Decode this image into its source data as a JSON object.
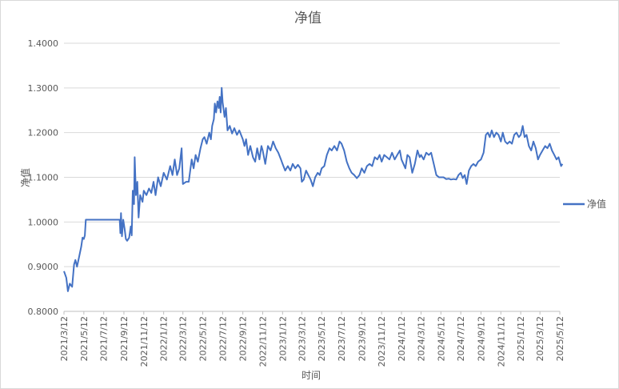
{
  "chart_data": {
    "type": "line",
    "title": "净值",
    "xlabel": "时间",
    "ylabel": "净值",
    "ylim": [
      0.8,
      1.4
    ],
    "y_ticks": [
      "0.8000",
      "0.9000",
      "1.0000",
      "1.1000",
      "1.2000",
      "1.3000",
      "1.4000"
    ],
    "x_ticks": [
      "2021/3/12",
      "2021/5/12",
      "2021/7/12",
      "2021/9/12",
      "2021/11/12",
      "2022/1/12",
      "2022/3/12",
      "2022/5/12",
      "2022/7/12",
      "2022/9/12",
      "2022/11/12",
      "2023/1/12",
      "2023/3/12",
      "2023/5/12",
      "2023/7/12",
      "2023/9/12",
      "2023/11/12",
      "2024/1/12",
      "2024/3/12",
      "2024/5/12",
      "2024/7/12",
      "2024/9/12",
      "2024/11/12",
      "2025/1/12",
      "2025/3/12",
      "2025/5/12"
    ],
    "grid": true,
    "legend": "right",
    "color": "#4472c4",
    "series": [
      {
        "name": "净值",
        "points": [
          [
            "2021/3/12",
            0.89
          ],
          [
            "2021/3/19",
            0.875
          ],
          [
            "2021/3/24",
            0.845
          ],
          [
            "2021/3/30",
            0.862
          ],
          [
            "2021/4/6",
            0.855
          ],
          [
            "2021/4/12",
            0.905
          ],
          [
            "2021/4/16",
            0.915
          ],
          [
            "2021/4/21",
            0.9
          ],
          [
            "2021/4/27",
            0.92
          ],
          [
            "2021/5/4",
            0.945
          ],
          [
            "2021/5/8",
            0.965
          ],
          [
            "2021/5/12",
            0.962
          ],
          [
            "2021/5/15",
            0.97
          ],
          [
            "2021/5/18",
            1.005
          ],
          [
            "2021/6/15",
            1.005
          ],
          [
            "2021/7/15",
            1.005
          ],
          [
            "2021/8/15",
            1.005
          ],
          [
            "2021/8/30",
            1.005
          ],
          [
            "2021/9/1",
            0.975
          ],
          [
            "2021/9/3",
            1.02
          ],
          [
            "2021/9/6",
            0.968
          ],
          [
            "2021/9/10",
            1.005
          ],
          [
            "2021/9/14",
            0.985
          ],
          [
            "2021/9/18",
            0.962
          ],
          [
            "2021/9/22",
            0.958
          ],
          [
            "2021/9/28",
            0.965
          ],
          [
            "2021/10/3",
            0.99
          ],
          [
            "2021/10/6",
            0.97
          ],
          [
            "2021/10/9",
            1.07
          ],
          [
            "2021/10/13",
            1.04
          ],
          [
            "2021/10/15",
            1.145
          ],
          [
            "2021/10/19",
            1.06
          ],
          [
            "2021/10/23",
            1.09
          ],
          [
            "2021/10/27",
            1.01
          ],
          [
            "2021/11/1",
            1.06
          ],
          [
            "2021/11/8",
            1.045
          ],
          [
            "2021/11/12",
            1.07
          ],
          [
            "2021/11/20",
            1.06
          ],
          [
            "2021/11/28",
            1.075
          ],
          [
            "2021/12/5",
            1.065
          ],
          [
            "2021/12/12",
            1.09
          ],
          [
            "2021/12/18",
            1.06
          ],
          [
            "2021/12/26",
            1.1
          ],
          [
            "2022/1/3",
            1.08
          ],
          [
            "2022/1/12",
            1.11
          ],
          [
            "2022/1/22",
            1.095
          ],
          [
            "2022/2/1",
            1.125
          ],
          [
            "2022/2/8",
            1.105
          ],
          [
            "2022/2/15",
            1.14
          ],
          [
            "2022/2/22",
            1.105
          ],
          [
            "2022/3/1",
            1.12
          ],
          [
            "2022/3/8",
            1.165
          ],
          [
            "2022/3/12",
            1.085
          ],
          [
            "2022/3/22",
            1.09
          ],
          [
            "2022/3/30",
            1.09
          ],
          [
            "2022/4/8",
            1.14
          ],
          [
            "2022/4/14",
            1.12
          ],
          [
            "2022/4/20",
            1.15
          ],
          [
            "2022/4/27",
            1.135
          ],
          [
            "2022/5/5",
            1.165
          ],
          [
            "2022/5/12",
            1.185
          ],
          [
            "2022/5/17",
            1.19
          ],
          [
            "2022/5/24",
            1.175
          ],
          [
            "2022/6/1",
            1.2
          ],
          [
            "2022/6/6",
            1.185
          ],
          [
            "2022/6/10",
            1.215
          ],
          [
            "2022/6/15",
            1.23
          ],
          [
            "2022/6/18",
            1.265
          ],
          [
            "2022/6/22",
            1.245
          ],
          [
            "2022/6/26",
            1.27
          ],
          [
            "2022/6/30",
            1.255
          ],
          [
            "2022/7/3",
            1.28
          ],
          [
            "2022/7/6",
            1.245
          ],
          [
            "2022/7/9",
            1.3
          ],
          [
            "2022/7/12",
            1.268
          ],
          [
            "2022/7/18",
            1.235
          ],
          [
            "2022/7/22",
            1.255
          ],
          [
            "2022/7/27",
            1.205
          ],
          [
            "2022/8/3",
            1.215
          ],
          [
            "2022/8/10",
            1.198
          ],
          [
            "2022/8/17",
            1.21
          ],
          [
            "2022/8/25",
            1.195
          ],
          [
            "2022/9/1",
            1.205
          ],
          [
            "2022/9/12",
            1.185
          ],
          [
            "2022/9/17",
            1.17
          ],
          [
            "2022/9/22",
            1.185
          ],
          [
            "2022/9/28",
            1.15
          ],
          [
            "2022/10/5",
            1.17
          ],
          [
            "2022/10/13",
            1.145
          ],
          [
            "2022/10/20",
            1.135
          ],
          [
            "2022/10/26",
            1.165
          ],
          [
            "2022/11/2",
            1.14
          ],
          [
            "2022/11/8",
            1.17
          ],
          [
            "2022/11/12",
            1.16
          ],
          [
            "2022/11/20",
            1.13
          ],
          [
            "2022/11/28",
            1.17
          ],
          [
            "2022/12/6",
            1.16
          ],
          [
            "2022/12/14",
            1.18
          ],
          [
            "2022/12/22",
            1.165
          ],
          [
            "2022/12/30",
            1.155
          ],
          [
            "2023/1/7",
            1.14
          ],
          [
            "2023/1/12",
            1.13
          ],
          [
            "2023/1/20",
            1.115
          ],
          [
            "2023/1/28",
            1.125
          ],
          [
            "2023/2/5",
            1.115
          ],
          [
            "2023/2/12",
            1.13
          ],
          [
            "2023/2/20",
            1.12
          ],
          [
            "2023/2/28",
            1.128
          ],
          [
            "2023/3/8",
            1.12
          ],
          [
            "2023/3/12",
            1.09
          ],
          [
            "2023/3/18",
            1.095
          ],
          [
            "2023/3/25",
            1.115
          ],
          [
            "2023/4/1",
            1.105
          ],
          [
            "2023/4/8",
            1.095
          ],
          [
            "2023/4/15",
            1.08
          ],
          [
            "2023/4/22",
            1.1
          ],
          [
            "2023/4/30",
            1.11
          ],
          [
            "2023/5/6",
            1.105
          ],
          [
            "2023/5/12",
            1.12
          ],
          [
            "2023/5/20",
            1.125
          ],
          [
            "2023/5/28",
            1.15
          ],
          [
            "2023/6/5",
            1.165
          ],
          [
            "2023/6/12",
            1.16
          ],
          [
            "2023/6/20",
            1.17
          ],
          [
            "2023/6/28",
            1.16
          ],
          [
            "2023/7/6",
            1.18
          ],
          [
            "2023/7/12",
            1.175
          ],
          [
            "2023/7/20",
            1.16
          ],
          [
            "2023/7/28",
            1.135
          ],
          [
            "2023/8/5",
            1.12
          ],
          [
            "2023/8/12",
            1.11
          ],
          [
            "2023/8/20",
            1.105
          ],
          [
            "2023/8/28",
            1.098
          ],
          [
            "2023/9/5",
            1.105
          ],
          [
            "2023/9/12",
            1.12
          ],
          [
            "2023/9/20",
            1.11
          ],
          [
            "2023/9/28",
            1.125
          ],
          [
            "2023/10/6",
            1.13
          ],
          [
            "2023/10/14",
            1.125
          ],
          [
            "2023/10/22",
            1.145
          ],
          [
            "2023/10/30",
            1.14
          ],
          [
            "2023/11/6",
            1.15
          ],
          [
            "2023/11/12",
            1.135
          ],
          [
            "2023/11/20",
            1.15
          ],
          [
            "2023/11/28",
            1.145
          ],
          [
            "2023/12/6",
            1.14
          ],
          [
            "2023/12/14",
            1.155
          ],
          [
            "2023/12/22",
            1.14
          ],
          [
            "2023/12/30",
            1.15
          ],
          [
            "2024/1/7",
            1.16
          ],
          [
            "2024/1/12",
            1.14
          ],
          [
            "2024/1/18",
            1.13
          ],
          [
            "2024/1/24",
            1.12
          ],
          [
            "2024/1/30",
            1.15
          ],
          [
            "2024/2/6",
            1.145
          ],
          [
            "2024/2/14",
            1.11
          ],
          [
            "2024/2/22",
            1.13
          ],
          [
            "2024/3/1",
            1.16
          ],
          [
            "2024/3/8",
            1.145
          ],
          [
            "2024/3/12",
            1.15
          ],
          [
            "2024/3/20",
            1.14
          ],
          [
            "2024/3/28",
            1.155
          ],
          [
            "2024/4/5",
            1.15
          ],
          [
            "2024/4/12",
            1.155
          ],
          [
            "2024/4/20",
            1.13
          ],
          [
            "2024/4/28",
            1.105
          ],
          [
            "2024/5/6",
            1.1
          ],
          [
            "2024/5/12",
            1.1
          ],
          [
            "2024/5/20",
            1.1
          ],
          [
            "2024/5/28",
            1.096
          ],
          [
            "2024/6/5",
            1.097
          ],
          [
            "2024/6/12",
            1.095
          ],
          [
            "2024/6/20",
            1.096
          ],
          [
            "2024/6/28",
            1.095
          ],
          [
            "2024/7/5",
            1.105
          ],
          [
            "2024/7/12",
            1.11
          ],
          [
            "2024/7/18",
            1.098
          ],
          [
            "2024/7/24",
            1.105
          ],
          [
            "2024/7/30",
            1.085
          ],
          [
            "2024/8/6",
            1.115
          ],
          [
            "2024/8/13",
            1.125
          ],
          [
            "2024/8/20",
            1.13
          ],
          [
            "2024/8/27",
            1.125
          ],
          [
            "2024/9/3",
            1.135
          ],
          [
            "2024/9/12",
            1.14
          ],
          [
            "2024/9/20",
            1.155
          ],
          [
            "2024/9/27",
            1.195
          ],
          [
            "2024/10/3",
            1.2
          ],
          [
            "2024/10/9",
            1.19
          ],
          [
            "2024/10/15",
            1.205
          ],
          [
            "2024/10/22",
            1.19
          ],
          [
            "2024/10/29",
            1.2
          ],
          [
            "2024/11/5",
            1.195
          ],
          [
            "2024/11/12",
            1.18
          ],
          [
            "2024/11/18",
            1.2
          ],
          [
            "2024/11/25",
            1.18
          ],
          [
            "2024/12/2",
            1.175
          ],
          [
            "2024/12/9",
            1.18
          ],
          [
            "2024/12/16",
            1.175
          ],
          [
            "2024/12/23",
            1.195
          ],
          [
            "2024/12/30",
            1.2
          ],
          [
            "2025/1/6",
            1.19
          ],
          [
            "2025/1/12",
            1.195
          ],
          [
            "2025/1/18",
            1.215
          ],
          [
            "2025/1/24",
            1.19
          ],
          [
            "2025/1/30",
            1.195
          ],
          [
            "2025/2/6",
            1.17
          ],
          [
            "2025/2/13",
            1.16
          ],
          [
            "2025/2/20",
            1.18
          ],
          [
            "2025/2/27",
            1.165
          ],
          [
            "2025/3/6",
            1.14
          ],
          [
            "2025/3/12",
            1.15
          ],
          [
            "2025/3/20",
            1.16
          ],
          [
            "2025/3/28",
            1.17
          ],
          [
            "2025/4/4",
            1.165
          ],
          [
            "2025/4/11",
            1.175
          ],
          [
            "2025/4/18",
            1.16
          ],
          [
            "2025/4/25",
            1.15
          ],
          [
            "2025/5/2",
            1.14
          ],
          [
            "2025/5/8",
            1.145
          ],
          [
            "2025/5/12",
            1.135
          ],
          [
            "2025/5/16",
            1.125
          ],
          [
            "2025/5/20",
            1.13
          ]
        ]
      }
    ]
  }
}
